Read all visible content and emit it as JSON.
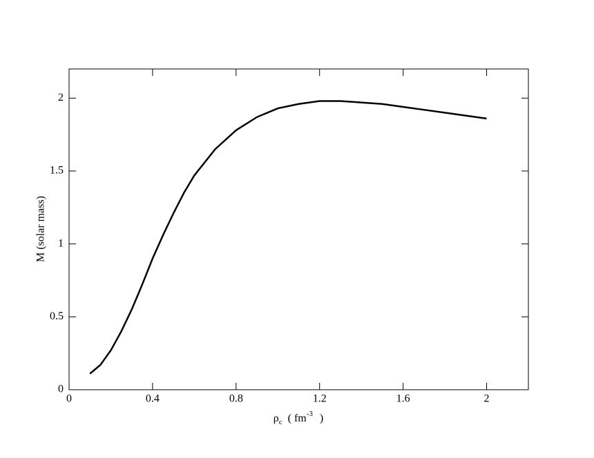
{
  "chart_data": {
    "type": "line",
    "x_label": {
      "symbol": "ρ",
      "subscript": "c",
      "open": "( fm",
      "exponent": "-3",
      "close": ")"
    },
    "y_label": "M  (solar mass)",
    "x": [
      0.1,
      0.15,
      0.2,
      0.25,
      0.3,
      0.35,
      0.4,
      0.45,
      0.5,
      0.55,
      0.6,
      0.7,
      0.8,
      0.9,
      1.0,
      1.1,
      1.2,
      1.3,
      1.4,
      1.5,
      1.6,
      1.7,
      1.8,
      1.9,
      2.0
    ],
    "values": [
      0.11,
      0.17,
      0.27,
      0.4,
      0.55,
      0.72,
      0.9,
      1.06,
      1.21,
      1.35,
      1.47,
      1.65,
      1.78,
      1.87,
      1.93,
      1.96,
      1.98,
      1.98,
      1.97,
      1.96,
      1.94,
      1.92,
      1.9,
      1.88,
      1.86
    ],
    "color": "#000000",
    "xlim": [
      0,
      2.2
    ],
    "ylim": [
      0,
      2.2
    ],
    "xticks": [
      0,
      0.4,
      0.8,
      1.2,
      1.6,
      2
    ],
    "yticks": [
      0,
      0.5,
      1,
      1.5,
      2
    ]
  }
}
